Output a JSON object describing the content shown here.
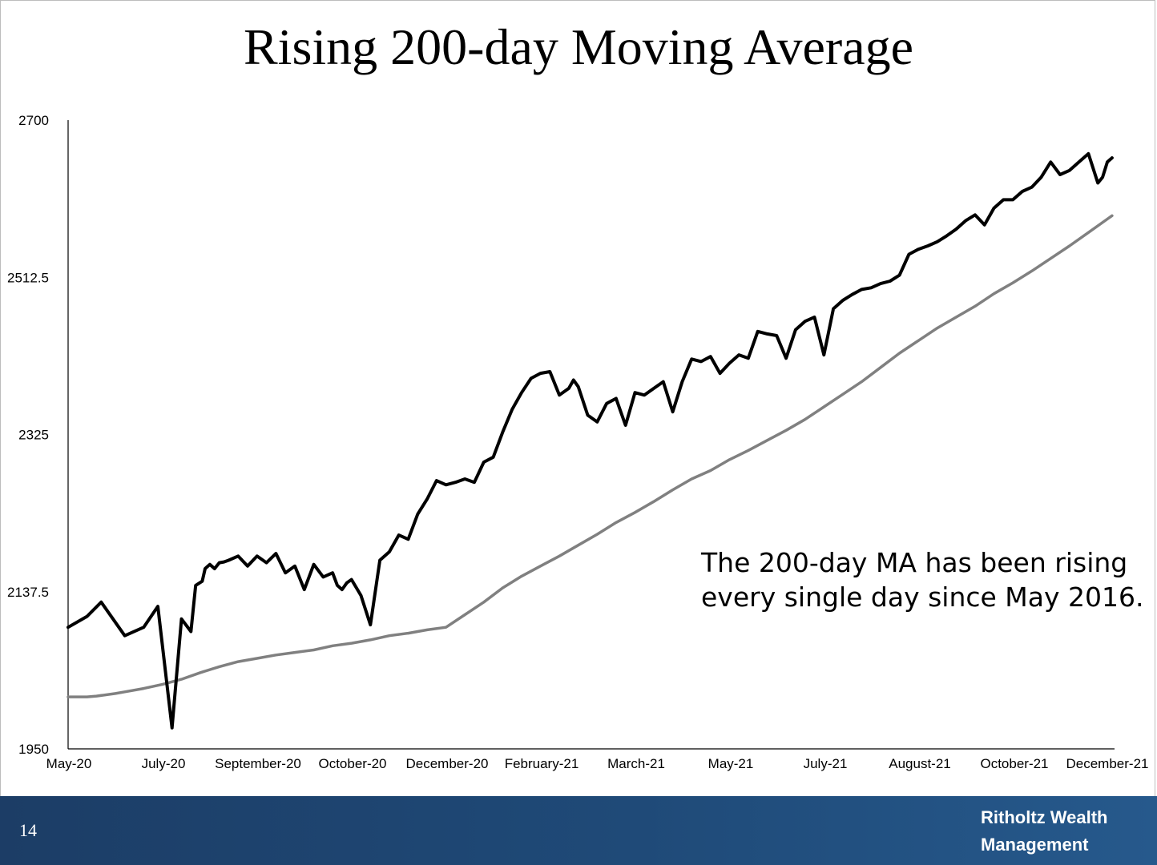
{
  "slide": {
    "title": "Rising 200-day Moving Average",
    "annotation": "The 200-day MA has been rising\nevery single day since May 2016.",
    "page_number": "14",
    "logo_line1": "Ritholtz Wealth",
    "logo_line2": "Management",
    "footer_color": "#1f4a78"
  },
  "chart_data": {
    "type": "line",
    "title": "Rising 200-day Moving Average",
    "xlabel": "",
    "ylabel": "",
    "ylim": [
      1950,
      2700
    ],
    "yticks": [
      "2700",
      "2512.5",
      "2325",
      "2137.5",
      "1950"
    ],
    "ytick_values": [
      2700,
      2512.5,
      2325,
      2137.5,
      1950
    ],
    "xticks": [
      "May-20",
      "July-20",
      "September-20",
      "October-20",
      "December-20",
      "February-21",
      "March-21",
      "May-21",
      "July-21",
      "August-21",
      "October-21",
      "December-21"
    ],
    "grid": false,
    "legend": "none",
    "x_index_range": [
      0,
      11
    ],
    "series": [
      {
        "color": "#000000",
        "x": [
          0,
          0.2,
          0.35,
          0.6,
          0.8,
          0.95,
          1.1,
          1.2,
          1.3,
          1.35,
          1.42,
          1.45,
          1.47,
          1.5,
          1.55,
          1.6,
          1.65,
          1.7,
          1.8,
          1.9,
          2.0,
          2.1,
          2.2,
          2.3,
          2.4,
          2.5,
          2.6,
          2.7,
          2.8,
          2.85,
          2.9,
          2.95,
          3.0,
          3.1,
          3.2,
          3.3,
          3.4,
          3.5,
          3.6,
          3.7,
          3.8,
          3.9,
          4.0,
          4.1,
          4.2,
          4.3,
          4.4,
          4.5,
          4.6,
          4.7,
          4.8,
          4.9,
          5.0,
          5.1,
          5.2,
          5.3,
          5.35,
          5.4,
          5.5,
          5.6,
          5.7,
          5.8,
          5.9,
          6.0,
          6.1,
          6.2,
          6.3,
          6.4,
          6.5,
          6.6,
          6.7,
          6.8,
          6.9,
          7.0,
          7.1,
          7.2,
          7.3,
          7.4,
          7.5,
          7.6,
          7.7,
          7.8,
          7.9,
          8.0,
          8.1,
          8.2,
          8.3,
          8.4,
          8.5,
          8.6,
          8.7,
          8.8,
          8.9,
          9.0,
          9.1,
          9.2,
          9.3,
          9.4,
          9.5,
          9.6,
          9.7,
          9.8,
          9.9,
          10.0,
          10.1,
          10.2,
          10.3,
          10.4,
          10.5,
          10.6,
          10.7,
          10.8,
          10.9,
          10.95,
          11.0,
          11.05
        ],
        "values": [
          2095,
          2108,
          2125,
          2085,
          2095,
          2120,
          1975,
          2105,
          2090,
          2145,
          2150,
          2165,
          2167,
          2170,
          2165,
          2172,
          2173,
          2175,
          2180,
          2168,
          2180,
          2172,
          2183,
          2160,
          2168,
          2140,
          2170,
          2155,
          2160,
          2145,
          2140,
          2148,
          2152,
          2133,
          2098,
          2175,
          2185,
          2205,
          2200,
          2230,
          2248,
          2270,
          2265,
          2268,
          2272,
          2268,
          2292,
          2298,
          2328,
          2355,
          2375,
          2392,
          2398,
          2400,
          2372,
          2380,
          2390,
          2382,
          2348,
          2340,
          2362,
          2368,
          2336,
          2375,
          2372,
          2380,
          2388,
          2352,
          2388,
          2415,
          2412,
          2418,
          2398,
          2410,
          2420,
          2416,
          2448,
          2445,
          2443,
          2416,
          2450,
          2460,
          2465,
          2420,
          2475,
          2485,
          2492,
          2498,
          2500,
          2505,
          2508,
          2515,
          2540,
          2546,
          2550,
          2555,
          2562,
          2570,
          2580,
          2587,
          2575,
          2595,
          2605,
          2605,
          2615,
          2620,
          2632,
          2650,
          2635,
          2640,
          2650,
          2660,
          2625,
          2632,
          2650,
          2655
        ]
      },
      {
        "color": "#808080",
        "x": [
          0,
          0.2,
          0.3,
          0.5,
          0.6,
          0.8,
          1.0,
          1.2,
          1.4,
          1.6,
          1.8,
          2.0,
          2.2,
          2.4,
          2.6,
          2.8,
          3.0,
          3.2,
          3.4,
          3.6,
          3.8,
          4.0,
          4.2,
          4.4,
          4.6,
          4.8,
          5.0,
          5.2,
          5.4,
          5.6,
          5.8,
          6.0,
          6.2,
          6.4,
          6.6,
          6.8,
          7.0,
          7.2,
          7.4,
          7.6,
          7.8,
          8.0,
          8.2,
          8.4,
          8.6,
          8.8,
          9.0,
          9.2,
          9.4,
          9.6,
          9.8,
          10.0,
          10.2,
          10.4,
          10.6,
          10.8,
          11.0,
          11.05
        ],
        "values": [
          2012,
          2012,
          2013,
          2016,
          2018,
          2022,
          2027,
          2033,
          2041,
          2048,
          2054,
          2058,
          2062,
          2065,
          2068,
          2073,
          2076,
          2080,
          2085,
          2088,
          2092,
          2095,
          2110,
          2125,
          2142,
          2156,
          2168,
          2180,
          2193,
          2206,
          2220,
          2232,
          2245,
          2259,
          2272,
          2282,
          2295,
          2306,
          2318,
          2330,
          2343,
          2358,
          2373,
          2388,
          2405,
          2422,
          2437,
          2452,
          2465,
          2478,
          2493,
          2506,
          2520,
          2535,
          2550,
          2566,
          2582,
          2586
        ]
      }
    ]
  }
}
